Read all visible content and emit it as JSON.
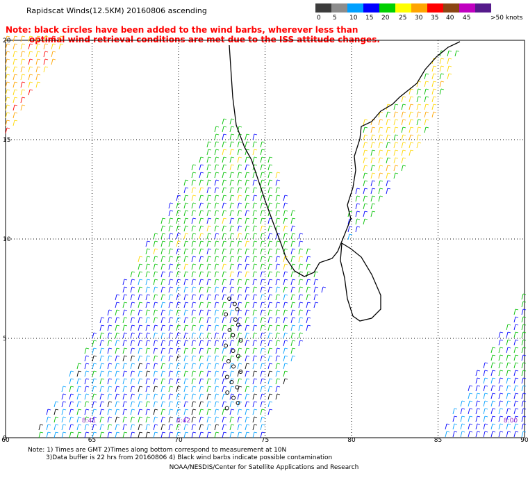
{
  "header": {
    "title": "Rapidscat Winds(12.5KM) 20160806 ascending",
    "note_line1": "Note: black circles have been added to the wind barbs, wherever less than",
    "note_line2": "optimal wind retrieval conditions are met due to the ISS attitude changes."
  },
  "legend": {
    "labels": [
      "0",
      "5",
      "10",
      "15",
      "20",
      "25",
      "30",
      "35",
      "40",
      "45",
      ">50 knots"
    ],
    "colors": [
      "#3c3c3c",
      "#8c8c8c",
      "#00a0ff",
      "#0000ff",
      "#00d000",
      "#ffff00",
      "#ffa500",
      "#ff0000",
      "#8b4513",
      "#c000c0",
      "#551a8b"
    ]
  },
  "map": {
    "lon_labels": [
      "60",
      "65",
      "70",
      "75",
      "80",
      "85",
      "90"
    ],
    "lat_labels": [
      "20",
      "15",
      "10",
      "5",
      "0"
    ],
    "time_labels": [
      "8:41",
      "8:42",
      "8:00"
    ]
  },
  "footer": {
    "line1": "Note: 1) Times are GMT 2)Times along bottom correspond to measurement at 10N",
    "line2": "3)Data buffer is 22 hrs from 20160806 4) Black wind barbs indicate possible contamination",
    "credit": "NOAA/NESDIS/Center for Satellite Applications and Research"
  }
}
